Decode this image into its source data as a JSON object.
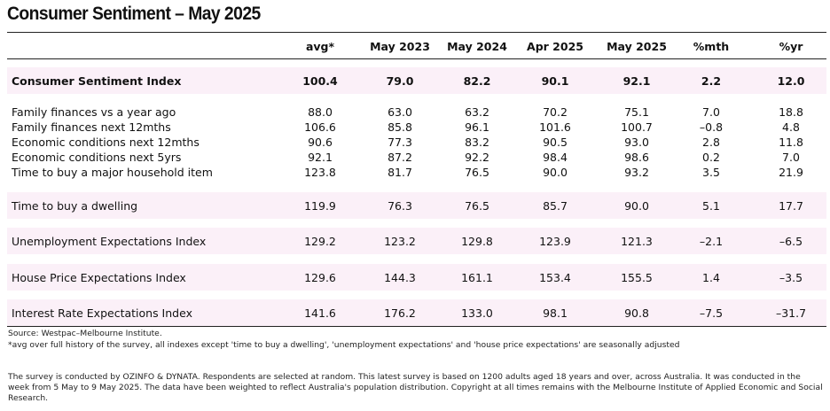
{
  "title": "Consumer Sentiment – May 2025",
  "columns": [
    "avg*",
    "May 2023",
    "May 2024",
    "Apr 2025",
    "May 2025",
    "%mth",
    "%yr"
  ],
  "rows": [
    {
      "label": "Consumer Sentiment Index",
      "values": [
        "100.4",
        "79.0",
        "82.2",
        "90.1",
        "92.1",
        "2.2",
        "12.0"
      ]
    },
    {
      "label": "Family finances vs a year ago",
      "values": [
        "88.0",
        "63.0",
        "63.2",
        "70.2",
        "75.1",
        "7.0",
        "18.8"
      ]
    },
    {
      "label": "Family finances next 12mths",
      "values": [
        "106.6",
        "85.8",
        "96.1",
        "101.6",
        "100.7",
        "–0.8",
        "4.8"
      ]
    },
    {
      "label": "Economic conditions next 12mths",
      "values": [
        "90.6",
        "77.3",
        "83.2",
        "90.5",
        "93.0",
        "2.8",
        "11.8"
      ]
    },
    {
      "label": "Economic conditions next 5yrs",
      "values": [
        "92.1",
        "87.2",
        "92.2",
        "98.4",
        "98.6",
        "0.2",
        "7.0"
      ]
    },
    {
      "label": "Time to buy a major household item",
      "values": [
        "123.8",
        "81.7",
        "76.5",
        "90.0",
        "93.2",
        "3.5",
        "21.9"
      ]
    },
    {
      "label": "Time to buy a dwelling",
      "values": [
        "119.9",
        "76.3",
        "76.5",
        "85.7",
        "90.0",
        "5.1",
        "17.7"
      ]
    },
    {
      "label": "Unemployment Expectations Index",
      "values": [
        "129.2",
        "123.2",
        "129.8",
        "123.9",
        "121.3",
        "–2.1",
        "–6.5"
      ]
    },
    {
      "label": "House Price Expectations Index",
      "values": [
        "129.6",
        "144.3",
        "161.1",
        "153.4",
        "155.5",
        "1.4",
        "–3.5"
      ]
    },
    {
      "label": "Interest Rate Expectations Index",
      "values": [
        "141.6",
        "176.2",
        "133.0",
        "98.1",
        "90.8",
        "–7.5",
        "–31.7"
      ]
    }
  ],
  "source": "Source: Westpac–Melbourne Institute.",
  "footnote": "*avg over full history of the survey, all indexes except 'time to buy a dwelling', 'unemployment expectations' and 'house price expectations' are seasonally adjusted",
  "methodology": "The survey is conducted by OZINFO & DYNATA. Respondents are selected at random. This latest survey is based on 1200 adults aged 18 years and over, across Australia. It was conducted in the week from 5 May to 9 May 2025. The data have been weighted to reflect Australia's population distribution. Copyright at all times remains with the Melbourne Institute of Applied Economic and Social Research.",
  "colors": {
    "band": "#fbf0f8",
    "text": "#111111",
    "rule": "#222222"
  }
}
